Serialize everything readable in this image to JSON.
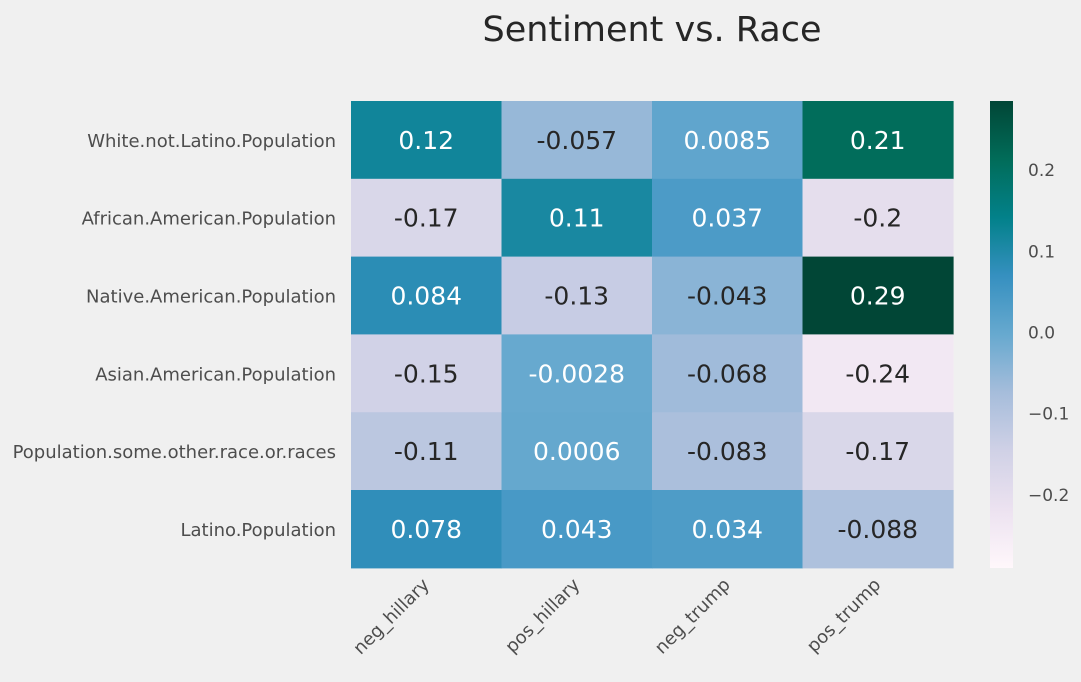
{
  "chart_data": {
    "type": "heatmap",
    "title": "Sentiment vs. Race",
    "rows": [
      "White.not.Latino.Population",
      "African.American.Population",
      "Native.American.Population",
      "Asian.American.Population",
      "Population.some.other.race.or.races",
      "Latino.Population"
    ],
    "columns": [
      "neg_hillary",
      "pos_hillary",
      "neg_trump",
      "pos_trump"
    ],
    "values": [
      [
        0.12,
        -0.057,
        0.0085,
        0.21
      ],
      [
        -0.17,
        0.11,
        0.037,
        -0.2
      ],
      [
        0.084,
        -0.13,
        -0.043,
        0.29
      ],
      [
        -0.15,
        -0.0028,
        -0.068,
        -0.24
      ],
      [
        -0.11,
        0.0006,
        -0.083,
        -0.17
      ],
      [
        0.078,
        0.043,
        0.034,
        -0.088
      ]
    ],
    "value_labels": [
      [
        "0.12",
        "-0.057",
        "0.0085",
        "0.21"
      ],
      [
        "-0.17",
        "0.11",
        "0.037",
        "-0.2"
      ],
      [
        "0.084",
        "-0.13",
        "-0.043",
        "0.29"
      ],
      [
        "-0.15",
        "-0.0028",
        "-0.068",
        "-0.24"
      ],
      [
        "-0.11",
        "0.0006",
        "-0.083",
        "-0.17"
      ],
      [
        "0.078",
        "0.043",
        "0.034",
        "-0.088"
      ]
    ],
    "colorbar": {
      "range": [
        -0.29,
        0.285
      ],
      "ticks": [
        0.2,
        0.1,
        0.0,
        -0.1,
        -0.2
      ],
      "tick_labels": [
        "0.2",
        "0.1",
        "0.0",
        "−0.1",
        "−0.2"
      ]
    },
    "colormap": "PuBuGn",
    "colormap_stops": [
      "#fff7fb",
      "#ece2f0",
      "#d0d1e6",
      "#a6bddb",
      "#67a9cf",
      "#3690c0",
      "#02818a",
      "#016c59",
      "#014636"
    ],
    "background": "#f0f0f0",
    "text_dark": "#262626",
    "text_light": "#ffffff",
    "grid": false
  }
}
